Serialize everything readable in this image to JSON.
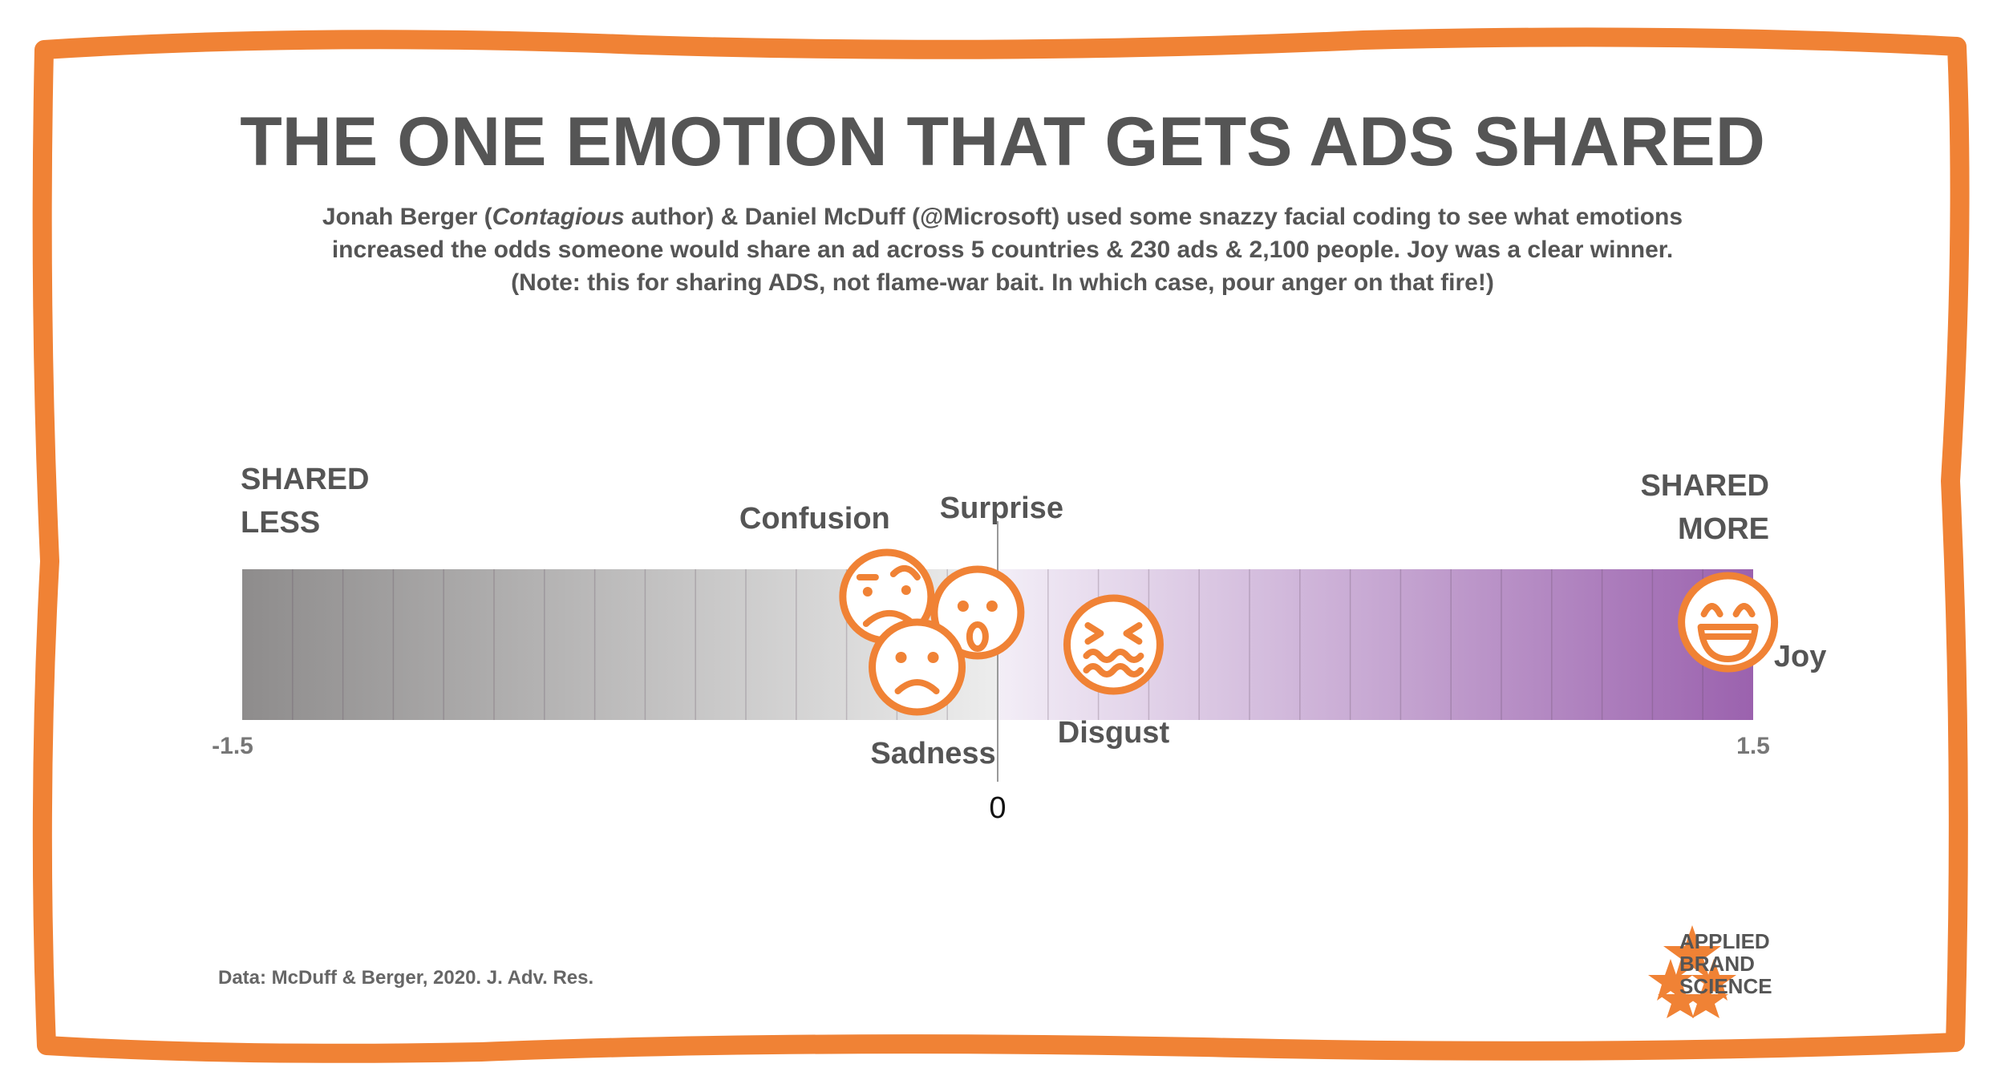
{
  "title": "THE ONE EMOTION THAT GETS ADS SHARED",
  "subtitle": {
    "line1_pre": "Jonah Berger (",
    "line1_italic": "Contagious",
    "line1_post": " author) & Daniel McDuff (@Microsoft) used some snazzy facial coding to see what emotions",
    "line2": "increased the odds someone would share an ad across 5 countries & 230 ads & 2,100 people. Joy was a clear winner.",
    "line3": "(Note: this for sharing ADS, not flame-war bait. In which case, pour anger on that fire!)"
  },
  "source": "Data: McDuff & Berger, 2020. J. Adv. Res.",
  "logo": {
    "line1": "APPLIED",
    "line2": "BRAND",
    "line3": "SCIENCE"
  },
  "colors": {
    "frame": "#F08235",
    "accent": "#F08235",
    "text": "#555555",
    "negative_dark": "#8E8C8C",
    "negative_light": "#EDEDED",
    "positive_light": "#F3EEF7",
    "positive_dark": "#9B62AE"
  },
  "chart_data": {
    "type": "scatter",
    "title": "THE ONE EMOTION THAT GETS ADS SHARED",
    "xlim": [
      -1.5,
      1.5
    ],
    "ticks": [
      {
        "value": -1.5,
        "label": "-1.5"
      },
      {
        "value": 0,
        "label": "0"
      },
      {
        "value": 1.5,
        "label": "1.5"
      }
    ],
    "left_label": [
      "SHARED",
      "LESS"
    ],
    "right_label": [
      "SHARED",
      "MORE"
    ],
    "points": [
      {
        "emotion": "Confusion",
        "x": -0.22,
        "icon": "confused-face-icon"
      },
      {
        "emotion": "Surprise",
        "x": -0.04,
        "icon": "surprised-face-icon"
      },
      {
        "emotion": "Sadness",
        "x": -0.16,
        "icon": "sad-face-icon"
      },
      {
        "emotion": "Disgust",
        "x": 0.23,
        "icon": "disgusted-face-icon"
      },
      {
        "emotion": "Joy",
        "x": 1.45,
        "icon": "laughing-face-icon"
      }
    ]
  }
}
